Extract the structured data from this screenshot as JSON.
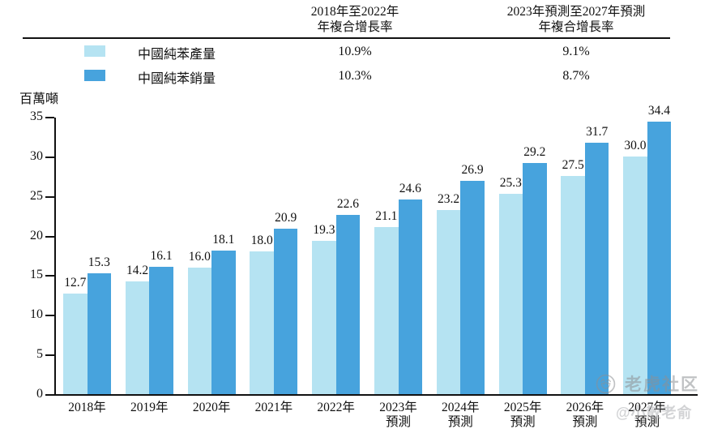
{
  "cagr_table": {
    "col1_header_line1": "2018年至2022年",
    "col1_header_line2": "年複合增長率",
    "col2_header_line1": "2023年預測至2027年預測",
    "col2_header_line2": "年複合增長率"
  },
  "legend": [
    {
      "label": "中國純苯產量",
      "color": "#B5E3F2",
      "cagr_2018_2022": "10.9%",
      "cagr_2023_2027": "9.1%"
    },
    {
      "label": "中國純苯銷量",
      "color": "#47A3DD",
      "cagr_2018_2022": "10.3%",
      "cagr_2023_2027": "8.7%"
    }
  ],
  "chart_data": {
    "type": "bar",
    "ylabel": "百萬噸",
    "ylim": [
      0,
      35
    ],
    "yticks": [
      0,
      5,
      10,
      15,
      20,
      25,
      30,
      35
    ],
    "grid": false,
    "legend_position": "top-left",
    "value_labels": true,
    "categories": [
      "2018年",
      "2019年",
      "2020年",
      "2021年",
      "2022年",
      "2023年",
      "2024年",
      "2025年",
      "2026年",
      "2027年"
    ],
    "category_sublabels": [
      "",
      "",
      "",
      "",
      "",
      "預測",
      "預測",
      "預測",
      "預測",
      "預測"
    ],
    "series": [
      {
        "name": "中國純苯產量",
        "color": "#B5E3F2",
        "values": [
          12.7,
          14.2,
          16.0,
          18.0,
          19.3,
          21.1,
          23.2,
          25.3,
          27.5,
          30.0
        ]
      },
      {
        "name": "中國純苯銷量",
        "color": "#47A3DD",
        "values": [
          15.3,
          16.1,
          18.1,
          20.9,
          22.6,
          24.6,
          26.9,
          29.2,
          31.7,
          34.4
        ]
      }
    ]
  },
  "watermark": {
    "brand": "老虎社区",
    "handle": "@小散老俞"
  }
}
